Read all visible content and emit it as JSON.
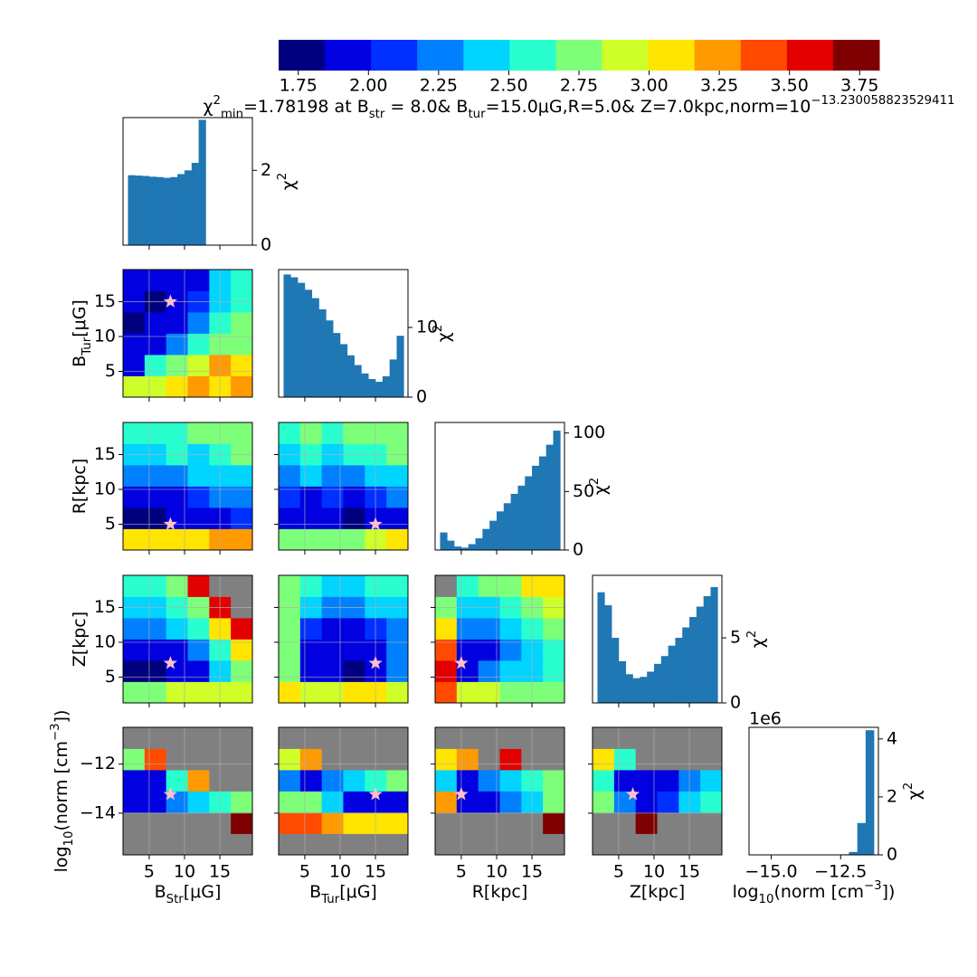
{
  "chart_data": {
    "type": "corner",
    "title_parts": [
      {
        "text": "χ"
      },
      {
        "text": "2",
        "pos": "sup"
      },
      {
        "text": "min",
        "pos": "sub"
      },
      {
        "text": "=1.78198 at "
      },
      {
        "text": "B"
      },
      {
        "text": "str",
        "pos": "sub"
      },
      {
        "text": " = 8.0& "
      },
      {
        "text": "B"
      },
      {
        "text": "tur",
        "pos": "sub"
      },
      {
        "text": "=15.0μG,R=5.0& Z=7.0kpc,norm=10"
      },
      {
        "text": "−13.230058823529411",
        "pos": "sup"
      }
    ],
    "best_fit": [
      8.0,
      15.0,
      5.0,
      7.0,
      -13.230058823529411
    ],
    "marker_color": "#ffc0cb",
    "grid": true,
    "nan_color": "#808080",
    "hist_color": "#1f77b4",
    "colorbar": {
      "colors": [
        "#00007f",
        "#0000e0",
        "#0030ff",
        "#0080ff",
        "#00d4ff",
        "#29ffce",
        "#7dff7a",
        "#ceff29",
        "#ffe500",
        "#ff9a00",
        "#ff4a00",
        "#e30000",
        "#7f0000"
      ],
      "lim": [
        1.68,
        3.82
      ],
      "ticks": [
        1.75,
        {
          "value": 2,
          "label": "2.00"
        },
        2.25,
        {
          "value": 2.5,
          "label": "2.50"
        },
        2.75,
        {
          "value": 3,
          "label": "3.00"
        },
        3.25,
        {
          "value": 3.5,
          "label": "3.50"
        },
        3.75
      ]
    },
    "params": [
      {
        "label": [
          {
            "text": "B"
          },
          {
            "text": "Str",
            "pos": "sub"
          },
          {
            "text": "[μG]"
          }
        ],
        "lim": [
          1.3,
          19.6
        ],
        "ticks": [
          5,
          10,
          15
        ]
      },
      {
        "label": [
          {
            "text": "B"
          },
          {
            "text": "Tur",
            "pos": "sub"
          },
          {
            "text": "[μG]"
          }
        ],
        "lim": [
          1.3,
          19.6
        ],
        "ticks": [
          5,
          10,
          15
        ]
      },
      {
        "label": [
          {
            "text": "R[kpc]"
          }
        ],
        "lim": [
          1.3,
          19.6
        ],
        "ticks": [
          5,
          10,
          15
        ]
      },
      {
        "label": [
          {
            "text": "Z[kpc]"
          }
        ],
        "lim": [
          1.3,
          19.6
        ],
        "ticks": [
          5,
          10,
          15
        ]
      },
      {
        "label": [
          {
            "text": "log"
          },
          {
            "text": "10",
            "pos": "sub"
          },
          {
            "text": "(norm ["
          },
          {
            "text": "cm"
          },
          {
            "text": "−3",
            "pos": "sup"
          },
          {
            "text": "])"
          }
        ],
        "lim": [
          -15.7,
          -10.5
        ],
        "ticks": [
          {
            "value": -12,
            "label": "−12"
          },
          {
            "value": -14,
            "label": "−14"
          }
        ]
      }
    ],
    "hist_ylabel": [
      {
        "text": "χ"
      },
      {
        "text": "2",
        "pos": "sup"
      }
    ],
    "hists": [
      {
        "bins": [
          2,
          3,
          4,
          5,
          6,
          7,
          8,
          9,
          10,
          11,
          12,
          13
        ],
        "values": [
          1.87,
          1.86,
          1.85,
          1.83,
          1.82,
          1.8,
          1.82,
          1.9,
          2.0,
          2.2,
          3.35
        ],
        "ylim": [
          0,
          3.41
        ],
        "yticks": [
          0,
          2
        ]
      },
      {
        "bins": [
          2,
          3,
          4,
          5,
          6,
          7,
          8,
          9,
          10,
          11,
          12,
          13,
          14,
          15,
          16,
          17,
          18,
          19
        ],
        "values": [
          17.6,
          17.2,
          16.4,
          15.4,
          14.2,
          12.6,
          11.0,
          9.2,
          7.6,
          6.0,
          4.6,
          3.4,
          2.6,
          2.2,
          3.0,
          5.4,
          8.8
        ],
        "ylim": [
          0,
          18.3
        ],
        "yticks": [
          0,
          10
        ]
      },
      {
        "bins": [
          2,
          3,
          4,
          5,
          6,
          7,
          8,
          9,
          10,
          11,
          12,
          13,
          14,
          15,
          16,
          17,
          18,
          19
        ],
        "values": [
          15,
          8,
          3,
          2,
          5,
          10,
          18,
          25,
          33,
          40,
          48,
          55,
          63,
          72,
          80,
          90,
          102
        ],
        "ylim": [
          0,
          109
        ],
        "yticks": [
          0,
          50,
          100
        ]
      },
      {
        "bins": [
          2,
          3,
          4,
          5,
          6,
          7,
          8,
          9,
          10,
          11,
          12,
          13,
          14,
          15,
          16,
          17,
          18,
          19
        ],
        "values": [
          8.5,
          7.5,
          5,
          3.2,
          2.2,
          1.9,
          2.0,
          2.4,
          3,
          3.6,
          4.4,
          5,
          5.8,
          6.6,
          7.4,
          8.2,
          8.9
        ],
        "ylim": [
          0,
          9.8
        ],
        "yticks": [
          0,
          5
        ]
      },
      {
        "bins": [
          -13.4,
          -13.1,
          -12.8,
          -12.5,
          -12.2,
          -11.9,
          -11.6,
          -11.3
        ],
        "values": [
          0,
          0,
          0,
          20000,
          100000,
          1100000,
          4300000
        ],
        "xlim": [
          -15.8,
          -11.14
        ],
        "xticks": [
          {
            "value": -15,
            "label": "−15.0"
          },
          {
            "value": -12.5,
            "label": "−12.5"
          }
        ],
        "ylim": [
          0,
          4400000
        ],
        "yticks": [
          0,
          {
            "value": 2000000,
            "label": "2"
          },
          {
            "value": 4000000,
            "label": "4"
          }
        ],
        "offset_label": "1e6"
      }
    ],
    "heatmaps": [
      [
        [
          [
            2.9,
            2.9,
            3.0,
            3.2,
            3.1,
            3.2
          ],
          [
            2.0,
            2.6,
            2.8,
            2.9,
            3.2,
            3.0
          ],
          [
            1.9,
            2.0,
            2.3,
            2.6,
            2.7,
            2.8
          ],
          [
            1.8,
            1.9,
            2.0,
            2.3,
            2.6,
            2.7
          ],
          [
            1.85,
            1.8,
            1.9,
            2.1,
            2.5,
            2.6
          ],
          [
            1.9,
            1.9,
            2.0,
            2.0,
            2.4,
            2.6
          ]
        ]
      ],
      [
        [
          [
            3.0,
            3.0,
            3.0,
            3.1,
            3.2,
            3.3
          ],
          [
            1.8,
            1.8,
            1.85,
            1.9,
            2.0,
            2.1
          ],
          [
            2.0,
            2.0,
            2.0,
            2.1,
            2.2,
            2.3
          ],
          [
            2.3,
            2.3,
            2.3,
            2.4,
            2.4,
            2.5
          ],
          [
            2.5,
            2.5,
            2.6,
            2.5,
            2.6,
            2.7
          ],
          [
            2.6,
            2.6,
            2.6,
            2.7,
            2.7,
            2.8
          ]
        ],
        [
          [
            2.8,
            2.7,
            2.7,
            2.8,
            2.9,
            3.0
          ],
          [
            1.9,
            1.85,
            1.9,
            1.8,
            1.9,
            2.0
          ],
          [
            2.1,
            2.0,
            2.1,
            2.0,
            2.1,
            2.2
          ],
          [
            2.3,
            2.4,
            2.3,
            2.3,
            2.4,
            2.5
          ],
          [
            2.5,
            2.6,
            2.5,
            2.6,
            2.6,
            2.7
          ],
          [
            2.6,
            2.7,
            2.6,
            2.7,
            2.7,
            2.8
          ]
        ]
      ],
      [
        [
          [
            2.8,
            2.8,
            2.9,
            2.9,
            2.9,
            2.9
          ],
          [
            1.8,
            1.8,
            1.85,
            2.0,
            2.4,
            2.8
          ],
          [
            2.0,
            2.0,
            2.0,
            2.2,
            2.6,
            3.0
          ],
          [
            2.3,
            2.3,
            2.4,
            2.6,
            3.0,
            3.6
          ],
          [
            2.4,
            2.5,
            2.6,
            2.8,
            3.6,
            null
          ],
          [
            2.6,
            2.6,
            2.7,
            3.5,
            null,
            null
          ]
        ],
        [
          [
            3.0,
            2.9,
            2.9,
            3.0,
            3.1,
            2.9
          ],
          [
            2.8,
            1.9,
            1.85,
            1.8,
            1.9,
            2.2
          ],
          [
            2.7,
            2.0,
            1.95,
            1.9,
            2.0,
            2.2
          ],
          [
            2.7,
            2.1,
            2.0,
            2.0,
            2.1,
            2.3
          ],
          [
            2.7,
            2.4,
            2.3,
            2.3,
            2.4,
            2.5
          ],
          [
            2.8,
            2.6,
            2.5,
            2.5,
            2.6,
            2.6
          ]
        ],
        [
          [
            3.4,
            2.9,
            2.9,
            2.8,
            2.8,
            2.7
          ],
          [
            3.5,
            1.9,
            2.2,
            2.4,
            2.5,
            2.6
          ],
          [
            3.4,
            1.85,
            2.0,
            2.3,
            2.5,
            2.6
          ],
          [
            3.0,
            2.2,
            2.2,
            2.4,
            2.6,
            2.7
          ],
          [
            2.8,
            2.5,
            2.5,
            2.6,
            2.8,
            2.9
          ],
          [
            null,
            2.6,
            2.7,
            2.8,
            3.0,
            3.1
          ]
        ]
      ],
      [
        [
          [
            null,
            null,
            null,
            null,
            null,
            null
          ],
          [
            null,
            null,
            null,
            null,
            null,
            3.7
          ],
          [
            1.9,
            1.85,
            2.2,
            2.5,
            2.6,
            2.7
          ],
          [
            1.9,
            2.0,
            2.6,
            3.3,
            null,
            null
          ],
          [
            2.8,
            3.4,
            null,
            null,
            null,
            null
          ],
          [
            null,
            null,
            null,
            null,
            null,
            null
          ]
        ],
        [
          [
            null,
            null,
            null,
            null,
            null,
            null
          ],
          [
            3.4,
            3.4,
            3.2,
            3.1,
            3.0,
            3.0
          ],
          [
            2.8,
            2.7,
            2.4,
            2.0,
            1.85,
            1.9
          ],
          [
            2.3,
            1.9,
            2.2,
            2.5,
            2.6,
            2.7
          ],
          [
            2.9,
            3.2,
            null,
            null,
            null,
            null
          ],
          [
            null,
            null,
            null,
            null,
            null,
            null
          ]
        ],
        [
          [
            null,
            null,
            null,
            null,
            null,
            null
          ],
          [
            null,
            null,
            null,
            null,
            null,
            3.7
          ],
          [
            3.3,
            1.9,
            2.0,
            2.3,
            2.5,
            2.7
          ],
          [
            2.5,
            1.85,
            2.2,
            2.4,
            2.6,
            2.7
          ],
          [
            3.0,
            3.3,
            null,
            3.5,
            null,
            null
          ],
          [
            null,
            null,
            null,
            null,
            null,
            null
          ]
        ],
        [
          [
            null,
            null,
            null,
            null,
            null,
            null
          ],
          [
            null,
            null,
            3.7,
            null,
            null,
            null
          ],
          [
            2.7,
            2.2,
            2.0,
            2.1,
            2.4,
            2.6
          ],
          [
            2.6,
            1.9,
            1.85,
            2.0,
            2.3,
            2.5
          ],
          [
            3.0,
            2.6,
            null,
            null,
            null,
            null
          ],
          [
            null,
            null,
            null,
            null,
            null,
            null
          ]
        ]
      ]
    ]
  }
}
